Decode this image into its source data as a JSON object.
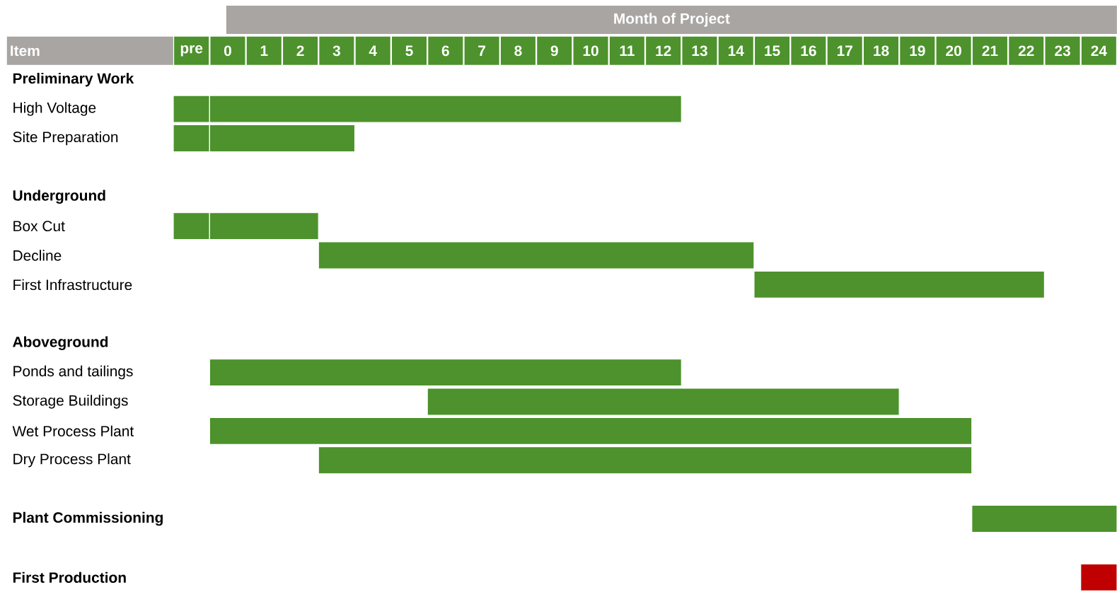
{
  "chart_data": {
    "type": "bar",
    "orientation": "horizontal",
    "xlabel": "Month of Project",
    "ylabel": "Item",
    "categories": [
      "**Preliminary Work**",
      "High Voltage",
      "Site Preparation",
      null,
      "**Underground**",
      "Box Cut",
      "Decline",
      "First Infrastructure",
      null,
      "**Aboveground**",
      "Ponds and tailings",
      "Storage Buildings",
      "Wet Process Plant",
      "Dry Process Plant",
      null,
      "**Plant Commissioning**",
      null,
      "**First Production**"
    ],
    "xlim": [
      -1.5,
      24.5
    ],
    "xticks": [
      {
        "value": -1,
        "label": "pre"
      },
      0,
      1,
      2,
      3,
      4,
      5,
      6,
      7,
      8,
      9,
      10,
      11,
      12,
      13,
      14,
      15,
      16,
      17,
      18,
      19,
      20,
      21,
      22,
      23,
      24
    ],
    "series": [
      {
        "color": "#4d922c",
        "base": [
          null,
          -1.5,
          -1.5,
          null,
          null,
          -1.5,
          null,
          null,
          null,
          null,
          null,
          null,
          null,
          null,
          null,
          null,
          null,
          null
        ],
        "values": [
          null,
          1,
          1,
          null,
          null,
          1,
          null,
          null,
          null,
          null,
          null,
          null,
          null,
          null,
          null,
          null,
          null,
          null
        ]
      },
      {
        "color": "#4d922c",
        "base": [
          null,
          -0.5,
          -0.5,
          null,
          null,
          -0.5,
          2.5,
          14.5,
          null,
          null,
          -0.5,
          5.5,
          -0.5,
          2.5,
          null,
          20.5,
          null,
          null
        ],
        "values": [
          null,
          13,
          4,
          null,
          null,
          3,
          12,
          8,
          null,
          null,
          13,
          13,
          21,
          18,
          null,
          4,
          null,
          null
        ]
      },
      {
        "color": "#c00000",
        "base": [
          null,
          null,
          null,
          null,
          null,
          null,
          null,
          null,
          null,
          null,
          null,
          null,
          null,
          null,
          null,
          null,
          null,
          23.5
        ],
        "values": [
          null,
          null,
          null,
          null,
          null,
          null,
          null,
          null,
          null,
          null,
          null,
          null,
          null,
          null,
          null,
          null,
          null,
          1
        ]
      }
    ]
  }
}
